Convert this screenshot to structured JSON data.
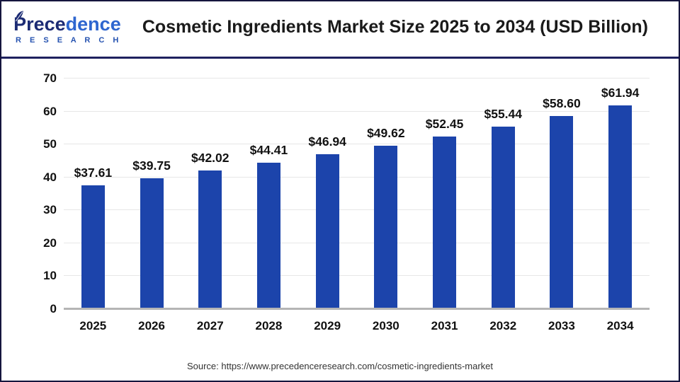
{
  "header": {
    "logo": {
      "name_part1": "Prece",
      "name_part2": "dence",
      "subtitle": "R E S E A R C H"
    },
    "title": "Cosmetic Ingredients Market Size 2025 to 2034 (USD Billion)"
  },
  "chart_data": {
    "type": "bar",
    "categories": [
      "2025",
      "2026",
      "2027",
      "2028",
      "2029",
      "2030",
      "2031",
      "2032",
      "2033",
      "2034"
    ],
    "values": [
      37.61,
      39.75,
      42.02,
      44.41,
      46.94,
      49.62,
      52.45,
      55.44,
      58.6,
      61.94
    ],
    "bar_labels": [
      "$37.61",
      "$39.75",
      "$42.02",
      "$44.41",
      "$46.94",
      "$49.62",
      "$52.45",
      "$55.44",
      "$58.60",
      "$61.94"
    ],
    "title": "Cosmetic Ingredients Market Size 2025 to 2034 (USD Billion)",
    "xlabel": "",
    "ylabel": "",
    "ylim": [
      0,
      70
    ],
    "yticks": [
      0,
      10,
      20,
      30,
      40,
      50,
      60,
      70
    ],
    "grid": true,
    "legend": false,
    "bar_color": "#1c44ab"
  },
  "footer": {
    "source": "Source: https://www.precedenceresearch.com/cosmetic-ingredients-market"
  },
  "colors": {
    "bar": "#1c44ab",
    "header_divider": "#1e215e",
    "outer_border": "#15153d",
    "gridline": "#e7e7e7",
    "axis_line": "#b5b5b5",
    "logo_dark": "#1c2b74",
    "logo_light": "#2e66cf",
    "text": "#111111",
    "source_text": "#333333"
  }
}
